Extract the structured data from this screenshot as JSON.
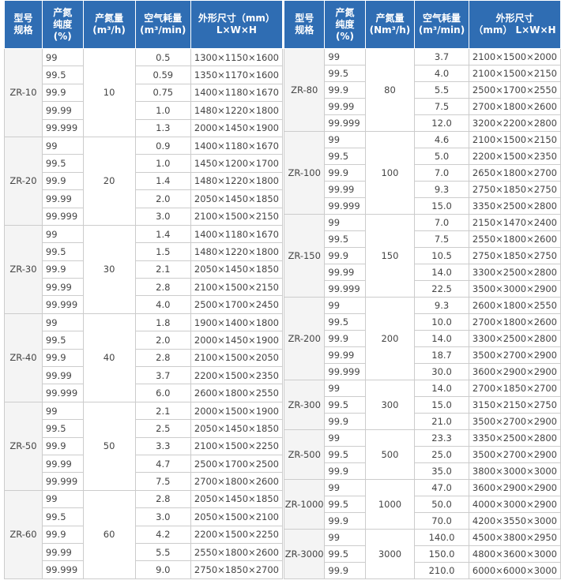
{
  "tables": [
    {
      "header": [
        [
          "型号",
          "规格"
        ],
        [
          "产氮",
          "纯度",
          "(%)"
        ],
        [
          "产氮量",
          "(m³/h)"
        ],
        [
          "空气耗量",
          "(m³/min)"
        ],
        [
          "外形尺寸（mm）",
          "L×W×H"
        ]
      ],
      "groups": [
        {
          "model": "ZR-10",
          "flow": "10",
          "rows": [
            [
              "99",
              "0.5",
              "1300×1150×1600"
            ],
            [
              "99.5",
              "0.59",
              "1350×1170×1600"
            ],
            [
              "99.9",
              "0.75",
              "1400×1180×1670"
            ],
            [
              "99.99",
              "1.0",
              "1480×1220×1800"
            ],
            [
              "99.999",
              "1.3",
              "2000×1450×1900"
            ]
          ]
        },
        {
          "model": "ZR-20",
          "flow": "20",
          "rows": [
            [
              "99",
              "0.9",
              "1400×1180×1670"
            ],
            [
              "99.5",
              "1.0",
              "1450×1200×1700"
            ],
            [
              "99.9",
              "1.4",
              "1480×1220×1800"
            ],
            [
              "99.99",
              "2.0",
              "2050×1450×1850"
            ],
            [
              "99.999",
              "3.0",
              "2100×1500×2150"
            ]
          ]
        },
        {
          "model": "ZR-30",
          "flow": "30",
          "rows": [
            [
              "99",
              "1.4",
              "1400×1180×1670"
            ],
            [
              "99.5",
              "1.5",
              "1480×1220×1800"
            ],
            [
              "99.9",
              "2.1",
              "2050×1450×1850"
            ],
            [
              "99.99",
              "2.8",
              "2100×1500×2150"
            ],
            [
              "99.999",
              "4.0",
              "2500×1700×2450"
            ]
          ]
        },
        {
          "model": "ZR-40",
          "flow": "40",
          "rows": [
            [
              "99",
              "1.8",
              "1900×1400×1800"
            ],
            [
              "99.5",
              "2.0",
              "2000×1450×1900"
            ],
            [
              "99.9",
              "2.8",
              "2100×1500×2050"
            ],
            [
              "99.99",
              "3.7",
              "2200×1500×2350"
            ],
            [
              "99.999",
              "6.0",
              "2600×1800×2550"
            ]
          ]
        },
        {
          "model": "ZR-50",
          "flow": "50",
          "rows": [
            [
              "99",
              "2.1",
              "2000×1500×1900"
            ],
            [
              "99.5",
              "2.5",
              "2050×1450×1850"
            ],
            [
              "99.9",
              "3.3",
              "2100×1500×2250"
            ],
            [
              "99.99",
              "4.7",
              "2500×1700×2500"
            ],
            [
              "99.999",
              "7.5",
              "2700×1800×2600"
            ]
          ]
        },
        {
          "model": "ZR-60",
          "flow": "60",
          "rows": [
            [
              "99",
              "2.8",
              "2050×1450×1850"
            ],
            [
              "99.5",
              "3.0",
              "2050×1500×2100"
            ],
            [
              "99.9",
              "4.2",
              "2200×1500×2250"
            ],
            [
              "99.99",
              "5.5",
              "2550×1800×2600"
            ],
            [
              "99.999",
              "9.0",
              "2750×1850×2700"
            ]
          ]
        }
      ]
    },
    {
      "header": [
        [
          "型号",
          "规格"
        ],
        [
          "产氮",
          "纯度",
          "(%)"
        ],
        [
          "产氮量",
          "(Nm³/h)"
        ],
        [
          "空气耗量",
          "(m³/min)"
        ],
        [
          "外形尺寸",
          "（mm） L×W×H"
        ]
      ],
      "groups": [
        {
          "model": "ZR-80",
          "flow": "80",
          "rows": [
            [
              "99",
              "3.7",
              "2100×1500×2000"
            ],
            [
              "99.5",
              "4.0",
              "2100×1500×2150"
            ],
            [
              "99.9",
              "5.5",
              "2500×1700×2550"
            ],
            [
              "99.99",
              "7.5",
              "2700×1800×2600"
            ],
            [
              "99.999",
              "12.0",
              "3200×2200×2800"
            ]
          ]
        },
        {
          "model": "ZR-100",
          "flow": "100",
          "rows": [
            [
              "99",
              "4.6",
              "2100×1500×2150"
            ],
            [
              "99.5",
              "5.0",
              "2200×1500×2350"
            ],
            [
              "99.9",
              "7.0",
              "2650×1800×2700"
            ],
            [
              "99.99",
              "9.3",
              "2750×1850×2750"
            ],
            [
              "99.999",
              "15.0",
              "3350×2500×2800"
            ]
          ]
        },
        {
          "model": "ZR-150",
          "flow": "150",
          "rows": [
            [
              "99",
              "7.0",
              "2150×1470×2400"
            ],
            [
              "99.5",
              "7.5",
              "2550×1800×2600"
            ],
            [
              "99.9",
              "10.5",
              "2750×1850×2750"
            ],
            [
              "99.99",
              "14.0",
              "3300×2500×2800"
            ],
            [
              "99.999",
              "22.5",
              "3500×3000×2900"
            ]
          ]
        },
        {
          "model": "ZR-200",
          "flow": "200",
          "rows": [
            [
              "99",
              "9.3",
              "2600×1800×2550"
            ],
            [
              "99.5",
              "10.0",
              "2700×1800×2600"
            ],
            [
              "99.9",
              "14.0",
              "3300×2500×2800"
            ],
            [
              "99.99",
              "18.7",
              "3500×2700×2900"
            ],
            [
              "99.999",
              "30.0",
              "3600×2900×2900"
            ]
          ]
        },
        {
          "model": "ZR-300",
          "flow": "300",
          "rows": [
            [
              "99",
              "14.0",
              "2700×1850×2700"
            ],
            [
              "99.5",
              "15.0",
              "3150×2150×2750"
            ],
            [
              "99.9",
              "21.0",
              "3500×2700×2900"
            ]
          ]
        },
        {
          "model": "ZR-500",
          "flow": "500",
          "rows": [
            [
              "99",
              "23.3",
              "3350×2500×2800"
            ],
            [
              "99.5",
              "25.0",
              "3500×2700×2900"
            ],
            [
              "99.9",
              "35.0",
              "3800×3000×3000"
            ]
          ]
        },
        {
          "model": "ZR-1000",
          "flow": "1000",
          "rows": [
            [
              "99",
              "47.0",
              "3600×2900×2900"
            ],
            [
              "99.5",
              "50.0",
              "4000×3000×2900"
            ],
            [
              "99.9",
              "70.0",
              "4200×3550×3000"
            ]
          ]
        },
        {
          "model": "ZR-3000",
          "flow": "3000",
          "rows": [
            [
              "99",
              "140.0",
              "4500×3800×2950"
            ],
            [
              "99.5",
              "150.0",
              "4800×3600×3000"
            ],
            [
              "99.9",
              "210.0",
              "6000×6000×3000"
            ]
          ]
        }
      ]
    }
  ]
}
